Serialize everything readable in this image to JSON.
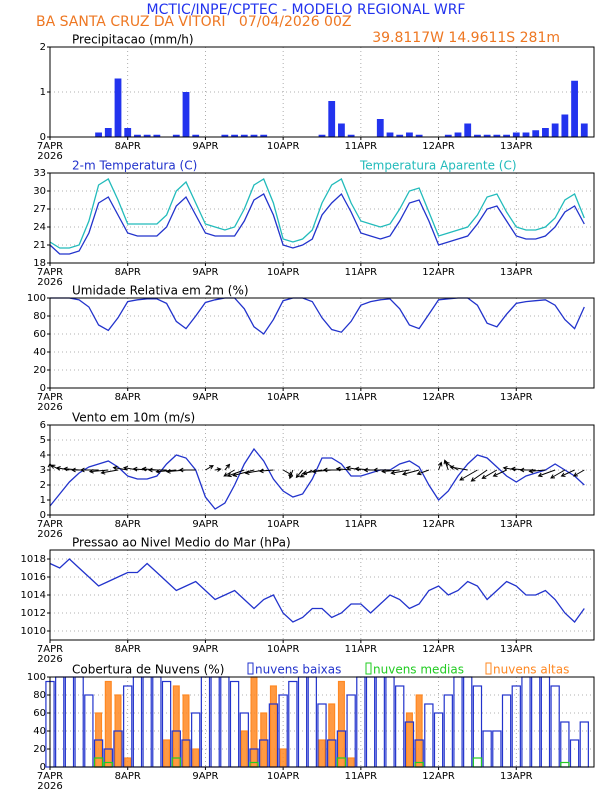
{
  "header": {
    "title": "MCTIC/INPE/CPTEC - MODELO REGIONAL WRF",
    "station": "BA SANTA CRUZ DA VITORI   07/04/2026 00Z",
    "location": "39.8117W 14.9611S 281m"
  },
  "chart_data": [
    {
      "type": "bar",
      "title": "Precipitacao (mm/h)",
      "color": "#2233ee",
      "grid": true,
      "x": [
        0,
        3,
        6,
        9,
        12,
        15,
        18,
        21,
        24,
        27,
        30,
        33,
        36,
        39,
        42,
        45,
        48,
        51,
        54,
        57,
        60,
        63,
        66,
        69,
        72,
        75,
        78,
        81,
        84,
        87,
        90,
        93,
        96,
        99,
        102,
        105,
        108,
        111,
        114,
        117,
        120,
        123,
        126,
        129,
        132,
        135,
        138,
        141,
        144,
        147,
        150,
        153,
        156,
        159,
        162,
        165
      ],
      "xlim": [
        0,
        168
      ],
      "xticks": [
        {
          "value": 0,
          "label": "7APR"
        },
        {
          "value": 24,
          "label": "8APR"
        },
        {
          "value": 48,
          "label": "9APR"
        },
        {
          "value": 72,
          "label": "10APR"
        },
        {
          "value": 96,
          "label": "11APR"
        },
        {
          "value": 120,
          "label": "12APR"
        },
        {
          "value": 144,
          "label": "13APR"
        }
      ],
      "year": "2026",
      "ylim": [
        0,
        2
      ],
      "yticks": [
        0,
        1,
        2
      ],
      "values": [
        0,
        0,
        0,
        0,
        0,
        0.1,
        0.2,
        1.3,
        0.2,
        0.05,
        0.05,
        0.05,
        0,
        0.05,
        1.0,
        0.05,
        0,
        0,
        0.05,
        0.05,
        0.05,
        0.05,
        0.05,
        0,
        0,
        0,
        0,
        0,
        0.05,
        0.8,
        0.3,
        0.05,
        0,
        0,
        0.4,
        0.1,
        0.05,
        0.1,
        0.05,
        0,
        0,
        0.05,
        0.1,
        0.3,
        0.05,
        0.05,
        0.05,
        0.05,
        0.1,
        0.1,
        0.15,
        0.2,
        0.3,
        0.5,
        1.25,
        0.3
      ]
    },
    {
      "type": "line",
      "grid": true,
      "x": [
        0,
        3,
        6,
        9,
        12,
        15,
        18,
        21,
        24,
        27,
        30,
        33,
        36,
        39,
        42,
        45,
        48,
        51,
        54,
        57,
        60,
        63,
        66,
        69,
        72,
        75,
        78,
        81,
        84,
        87,
        90,
        93,
        96,
        99,
        102,
        105,
        108,
        111,
        114,
        117,
        120,
        123,
        126,
        129,
        132,
        135,
        138,
        141,
        144,
        147,
        150,
        153,
        156,
        159,
        162,
        165
      ],
      "xlim": [
        0,
        168
      ],
      "xticks": [
        {
          "value": 0,
          "label": "7APR"
        },
        {
          "value": 24,
          "label": "8APR"
        },
        {
          "value": 48,
          "label": "9APR"
        },
        {
          "value": 72,
          "label": "10APR"
        },
        {
          "value": 96,
          "label": "11APR"
        },
        {
          "value": 120,
          "label": "12APR"
        },
        {
          "value": 144,
          "label": "13APR"
        }
      ],
      "year": "2026",
      "ylim": [
        18,
        33
      ],
      "yticks": [
        18,
        21,
        24,
        27,
        30,
        33
      ],
      "series": [
        {
          "name": "2-m Temperatura (C)",
          "color": "#2233cc",
          "values": [
            21,
            19.5,
            19.5,
            20,
            23,
            28,
            29,
            26,
            23,
            22.5,
            22.5,
            22.5,
            24,
            27.5,
            29,
            26,
            23,
            22.5,
            22.5,
            22.5,
            25,
            28.5,
            29.5,
            26,
            21,
            20.5,
            21,
            22,
            26,
            28,
            29.5,
            26.5,
            23,
            22.5,
            22,
            22.5,
            25,
            28,
            28.5,
            25,
            21,
            21.5,
            22,
            22.5,
            24.5,
            27,
            27.5,
            25,
            22.5,
            22,
            22,
            22.5,
            24,
            26.5,
            27.5,
            24.5
          ]
        },
        {
          "name": "Temperatura Aparente (C)",
          "color": "#22bbbb",
          "values": [
            21.5,
            20.5,
            20.5,
            21,
            25,
            31,
            32,
            28.5,
            24.5,
            24.5,
            24.5,
            24.5,
            26,
            30,
            31.5,
            28,
            24.5,
            24,
            23.5,
            24,
            27,
            31,
            32,
            28,
            22,
            21.5,
            22,
            23.5,
            28,
            31,
            32,
            28,
            25,
            24.5,
            24,
            24.5,
            27,
            30,
            30.5,
            26.5,
            22.5,
            23,
            23.5,
            24,
            26,
            29,
            29.5,
            26.5,
            24,
            23.5,
            23.5,
            24,
            25.5,
            28.5,
            29.5,
            25.5
          ]
        }
      ]
    },
    {
      "type": "line",
      "title": "Umidade Relativa em 2m (%)",
      "grid": true,
      "x": [
        0,
        3,
        6,
        9,
        12,
        15,
        18,
        21,
        24,
        27,
        30,
        33,
        36,
        39,
        42,
        45,
        48,
        51,
        54,
        57,
        60,
        63,
        66,
        69,
        72,
        75,
        78,
        81,
        84,
        87,
        90,
        93,
        96,
        99,
        102,
        105,
        108,
        111,
        114,
        117,
        120,
        123,
        126,
        129,
        132,
        135,
        138,
        141,
        144,
        147,
        150,
        153,
        156,
        159,
        162,
        165
      ],
      "xlim": [
        0,
        168
      ],
      "xticks": [
        {
          "value": 0,
          "label": "7APR"
        },
        {
          "value": 24,
          "label": "8APR"
        },
        {
          "value": 48,
          "label": "9APR"
        },
        {
          "value": 72,
          "label": "10APR"
        },
        {
          "value": 96,
          "label": "11APR"
        },
        {
          "value": 120,
          "label": "12APR"
        },
        {
          "value": 144,
          "label": "13APR"
        }
      ],
      "year": "2026",
      "ylim": [
        0,
        100
      ],
      "yticks": [
        0,
        20,
        40,
        60,
        80,
        100
      ],
      "series": [
        {
          "color": "#2233cc",
          "values": [
            100,
            100,
            100,
            98,
            90,
            70,
            64,
            78,
            96,
            98,
            99,
            99,
            94,
            74,
            66,
            80,
            95,
            98,
            100,
            100,
            88,
            68,
            60,
            76,
            97,
            100,
            100,
            96,
            78,
            65,
            62,
            74,
            92,
            96,
            98,
            99,
            88,
            70,
            66,
            82,
            98,
            99,
            100,
            100,
            92,
            72,
            68,
            82,
            94,
            96,
            97,
            98,
            92,
            76,
            66,
            90
          ]
        }
      ]
    },
    {
      "type": "wind",
      "title": "Vento em 10m (m/s)",
      "grid": true,
      "x": [
        0,
        3,
        6,
        9,
        12,
        15,
        18,
        21,
        24,
        27,
        30,
        33,
        36,
        39,
        42,
        45,
        48,
        51,
        54,
        57,
        60,
        63,
        66,
        69,
        72,
        75,
        78,
        81,
        84,
        87,
        90,
        93,
        96,
        99,
        102,
        105,
        108,
        111,
        114,
        117,
        120,
        123,
        126,
        129,
        132,
        135,
        138,
        141,
        144,
        147,
        150,
        153,
        156,
        159,
        162,
        165
      ],
      "xlim": [
        0,
        168
      ],
      "xticks": [
        {
          "value": 0,
          "label": "7APR"
        },
        {
          "value": 24,
          "label": "8APR"
        },
        {
          "value": 48,
          "label": "9APR"
        },
        {
          "value": 72,
          "label": "10APR"
        },
        {
          "value": 96,
          "label": "11APR"
        },
        {
          "value": 120,
          "label": "12APR"
        },
        {
          "value": 144,
          "label": "13APR"
        }
      ],
      "year": "2026",
      "ylim": [
        0,
        6
      ],
      "yticks": [
        0,
        1,
        2,
        3,
        4,
        5,
        6
      ],
      "series": [
        {
          "color": "#2233cc",
          "values": [
            0.6,
            1.4,
            2.2,
            2.8,
            3.2,
            3.4,
            3.6,
            3.2,
            2.6,
            2.4,
            2.4,
            2.6,
            3.4,
            4.0,
            3.8,
            3.0,
            1.2,
            0.4,
            0.8,
            2.0,
            3.4,
            4.4,
            3.6,
            2.4,
            1.6,
            1.2,
            1.4,
            2.4,
            3.8,
            3.8,
            3.4,
            2.6,
            2.6,
            2.8,
            3.0,
            3.0,
            3.4,
            3.6,
            3.2,
            2.0,
            1.0,
            1.6,
            2.6,
            3.4,
            4.0,
            3.8,
            3.2,
            2.6,
            2.2,
            2.6,
            2.8,
            3.0,
            3.4,
            3.0,
            2.6,
            2.0
          ]
        }
      ],
      "directions": [
        180,
        120,
        100,
        95,
        90,
        90,
        85,
        80,
        100,
        100,
        95,
        95,
        90,
        85,
        85,
        90,
        240,
        260,
        220,
        60,
        70,
        75,
        80,
        85,
        300,
        20,
        40,
        60,
        80,
        85,
        90,
        95,
        100,
        95,
        90,
        90,
        85,
        80,
        75,
        70,
        200,
        160,
        120,
        100,
        60,
        55,
        60,
        65,
        100,
        95,
        90,
        85,
        70,
        60,
        65,
        60
      ]
    },
    {
      "type": "line",
      "title": "Pressao ao Nivel Medio do Mar (hPa)",
      "grid": true,
      "x": [
        0,
        3,
        6,
        9,
        12,
        15,
        18,
        21,
        24,
        27,
        30,
        33,
        36,
        39,
        42,
        45,
        48,
        51,
        54,
        57,
        60,
        63,
        66,
        69,
        72,
        75,
        78,
        81,
        84,
        87,
        90,
        93,
        96,
        99,
        102,
        105,
        108,
        111,
        114,
        117,
        120,
        123,
        126,
        129,
        132,
        135,
        138,
        141,
        144,
        147,
        150,
        153,
        156,
        159,
        162,
        165
      ],
      "xlim": [
        0,
        168
      ],
      "xticks": [
        {
          "value": 0,
          "label": "7APR"
        },
        {
          "value": 24,
          "label": "8APR"
        },
        {
          "value": 48,
          "label": "9APR"
        },
        {
          "value": 72,
          "label": "10APR"
        },
        {
          "value": 96,
          "label": "11APR"
        },
        {
          "value": 120,
          "label": "12APR"
        },
        {
          "value": 144,
          "label": "13APR"
        }
      ],
      "year": "2026",
      "ylim": [
        1009,
        1019
      ],
      "yticks": [
        1010,
        1012,
        1014,
        1016,
        1018
      ],
      "series": [
        {
          "color": "#2233cc",
          "values": [
            1017.5,
            1017,
            1018,
            1017,
            1016,
            1015,
            1015.5,
            1016,
            1016.5,
            1016.5,
            1017.5,
            1016.5,
            1015.5,
            1014.5,
            1015,
            1015.5,
            1014.5,
            1013.5,
            1014,
            1014.5,
            1013.5,
            1012.5,
            1013.5,
            1014,
            1012,
            1011,
            1011.5,
            1012.5,
            1012.5,
            1011.5,
            1012,
            1013,
            1013,
            1012,
            1013,
            1014,
            1013.5,
            1012.5,
            1013,
            1014.5,
            1015,
            1014,
            1014.5,
            1015.5,
            1015,
            1013.5,
            1014.5,
            1015.5,
            1015,
            1014,
            1014,
            1014.5,
            1013.5,
            1012,
            1011,
            1012.5
          ]
        }
      ]
    },
    {
      "type": "cloud",
      "title": "Cobertura de Nuvens (%)",
      "grid": true,
      "x": [
        0,
        3,
        6,
        9,
        12,
        15,
        18,
        21,
        24,
        27,
        30,
        33,
        36,
        39,
        42,
        45,
        48,
        51,
        54,
        57,
        60,
        63,
        66,
        69,
        72,
        75,
        78,
        81,
        84,
        87,
        90,
        93,
        96,
        99,
        102,
        105,
        108,
        111,
        114,
        117,
        120,
        123,
        126,
        129,
        132,
        135,
        138,
        141,
        144,
        147,
        150,
        153,
        156,
        159,
        162,
        165
      ],
      "xlim": [
        0,
        168
      ],
      "xticks": [
        {
          "value": 0,
          "label": "7APR"
        },
        {
          "value": 24,
          "label": "8APR"
        },
        {
          "value": 48,
          "label": "9APR"
        },
        {
          "value": 72,
          "label": "10APR"
        },
        {
          "value": 96,
          "label": "11APR"
        },
        {
          "value": 120,
          "label": "12APR"
        },
        {
          "value": 144,
          "label": "13APR"
        }
      ],
      "year": "2026",
      "ylim": [
        0,
        100
      ],
      "yticks": [
        0,
        20,
        40,
        60,
        80,
        100
      ],
      "series": [
        {
          "name": "nuvens baixas",
          "color": "#2233cc",
          "values": [
            95,
            100,
            100,
            100,
            80,
            30,
            20,
            40,
            90,
            100,
            100,
            100,
            95,
            40,
            30,
            60,
            100,
            100,
            100,
            95,
            60,
            20,
            30,
            70,
            80,
            95,
            100,
            100,
            70,
            30,
            40,
            80,
            100,
            100,
            100,
            100,
            90,
            50,
            30,
            70,
            60,
            80,
            100,
            100,
            90,
            40,
            40,
            80,
            90,
            100,
            100,
            100,
            90,
            50,
            30,
            50
          ]
        },
        {
          "name": "nuvens medias",
          "color": "#22cc22",
          "values": [
            0,
            0,
            0,
            0,
            0,
            10,
            5,
            0,
            0,
            0,
            0,
            0,
            0,
            10,
            0,
            0,
            0,
            0,
            0,
            0,
            0,
            5,
            0,
            0,
            0,
            0,
            0,
            0,
            0,
            0,
            10,
            0,
            0,
            0,
            0,
            0,
            0,
            0,
            5,
            0,
            0,
            0,
            0,
            0,
            10,
            0,
            0,
            0,
            0,
            0,
            0,
            0,
            0,
            5,
            0,
            0
          ]
        },
        {
          "name": "nuvens altas",
          "color": "#ff8822",
          "values": [
            0,
            0,
            0,
            0,
            0,
            60,
            95,
            80,
            10,
            0,
            0,
            0,
            30,
            90,
            80,
            20,
            0,
            0,
            0,
            0,
            40,
            100,
            60,
            90,
            20,
            0,
            0,
            0,
            30,
            70,
            95,
            10,
            0,
            0,
            0,
            0,
            0,
            60,
            80,
            0,
            0,
            0,
            0,
            0,
            0,
            0,
            0,
            0,
            0,
            0,
            0,
            0,
            0,
            0,
            0,
            0
          ]
        }
      ]
    }
  ]
}
